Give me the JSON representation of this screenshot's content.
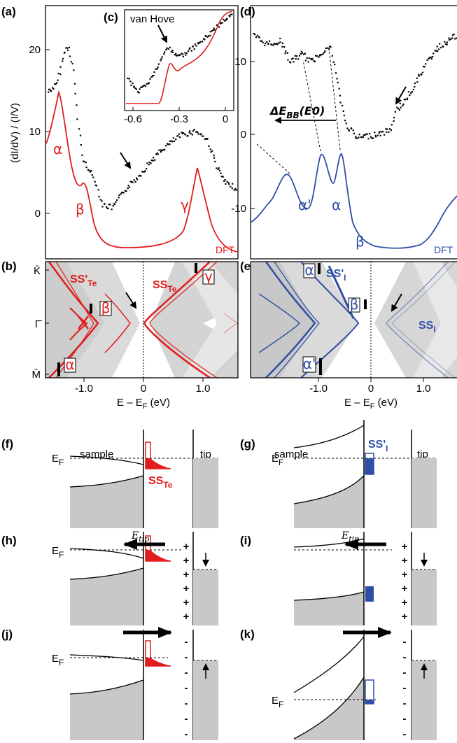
{
  "panel_labels": [
    "(a)",
    "(b)",
    "(c)",
    "(d)",
    "(e)",
    "(f)",
    "(g)",
    "(h)",
    "(i)",
    "(j)",
    "(k)"
  ],
  "colors": {
    "red": "#e11d1d",
    "blue": "#2f4fa6",
    "gray": "#c8c8c8",
    "band": "#dcdcdc"
  },
  "panel_a": {
    "ylabel": "(dI/dV) / (I/V)",
    "yticks": [
      "0",
      "10",
      "20"
    ],
    "dft_label": "DFT",
    "peak_labels": {
      "alpha": "α",
      "beta": "β",
      "gamma": "γ"
    }
  },
  "panel_c": {
    "annotation": "van Hove",
    "xticks": [
      "-0.6",
      "-0.3",
      "0"
    ]
  },
  "panel_d": {
    "yticks": [
      "10",
      "0",
      "-10"
    ],
    "dft_label": "DFT",
    "shift_label": "ΔE",
    "shift_sub": "BB",
    "shift_arg": "(E0)",
    "peak_labels": {
      "alpha_prime": "α'",
      "alpha": "α",
      "beta": "β"
    }
  },
  "panel_b": {
    "k_labels": [
      "K̄",
      "Γ̄",
      "M̄"
    ],
    "ss_prime": "SS'",
    "ss": "SS",
    "sub": "Te",
    "boxed": {
      "beta": "β",
      "gamma": "γ",
      "alpha": "α"
    }
  },
  "panel_e": {
    "ss_prime": "SS'",
    "ss": "SS",
    "sub": "I",
    "boxed": {
      "alpha": "α",
      "beta": "β",
      "alpha_prime": "α'"
    }
  },
  "xaxis": {
    "label": "E – E",
    "label_sub": "F",
    "label_unit": " (eV)",
    "ticks": [
      "-1.0",
      "0",
      "1.0"
    ]
  },
  "schematics": {
    "sample": "sample",
    "tip": "tip",
    "ef": "E",
    "ef_sub": "F",
    "etip": "E",
    "etip_sub": "tip",
    "ss_te": "SS",
    "ss_te_sub": "Te",
    "ss_i": "SS'",
    "ss_i_sub": "I",
    "plus": "+",
    "minus": "-"
  }
}
